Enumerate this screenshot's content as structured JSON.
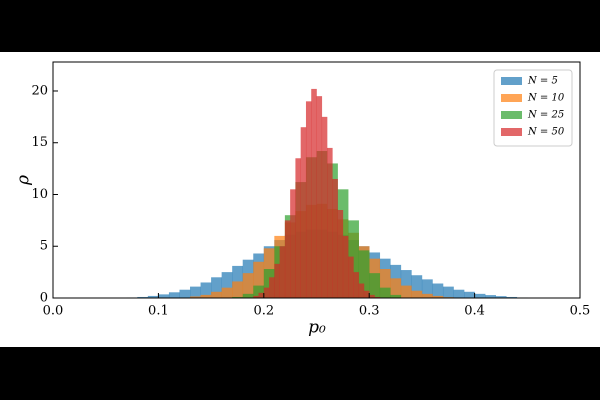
{
  "chart_data": {
    "type": "histogram",
    "xlabel": "p₀",
    "ylabel": "ρ",
    "xlim": [
      0,
      0.5
    ],
    "ylim": [
      0,
      22.8
    ],
    "xticks": [
      {
        "value": 0,
        "label": "0.0"
      },
      0.1,
      0.2,
      0.3,
      0.4,
      0.5
    ],
    "yticks": [
      0,
      5,
      10,
      15,
      20
    ],
    "legend": "upper right",
    "opacity": 0.7,
    "series": [
      {
        "name": "N = 5",
        "color": "#1f77b4",
        "bins": [
          0.06,
          0.07,
          0.08,
          0.09,
          0.1,
          0.11,
          0.12,
          0.13,
          0.14,
          0.15,
          0.16,
          0.17,
          0.18,
          0.19,
          0.2,
          0.21,
          0.22,
          0.23,
          0.24,
          0.25,
          0.26,
          0.27,
          0.28,
          0.29,
          0.3,
          0.31,
          0.32,
          0.33,
          0.34,
          0.35,
          0.36,
          0.37,
          0.38,
          0.39,
          0.4,
          0.41,
          0.42,
          0.43,
          0.44,
          0.45
        ],
        "values": [
          0.02,
          0.05,
          0.1,
          0.2,
          0.35,
          0.55,
          0.8,
          1.1,
          1.5,
          2.0,
          2.5,
          3.1,
          3.7,
          4.3,
          5.0,
          5.6,
          6.1,
          6.4,
          6.6,
          6.6,
          6.4,
          6.1,
          5.6,
          5.0,
          4.4,
          3.8,
          3.2,
          2.7,
          2.2,
          1.8,
          1.4,
          1.1,
          0.8,
          0.6,
          0.4,
          0.28,
          0.18,
          0.1,
          0.05
        ]
      },
      {
        "name": "N = 10",
        "color": "#ff7f0e",
        "bins": [
          0.12,
          0.13,
          0.14,
          0.15,
          0.16,
          0.17,
          0.18,
          0.19,
          0.2,
          0.21,
          0.22,
          0.23,
          0.24,
          0.25,
          0.26,
          0.27,
          0.28,
          0.29,
          0.3,
          0.31,
          0.32,
          0.33,
          0.34,
          0.35,
          0.36,
          0.37,
          0.38
        ],
        "values": [
          0.05,
          0.15,
          0.3,
          0.6,
          1.0,
          1.6,
          2.4,
          3.5,
          4.8,
          6.0,
          7.3,
          8.4,
          9.0,
          9.1,
          8.6,
          7.6,
          6.3,
          5.0,
          3.8,
          2.8,
          1.9,
          1.2,
          0.7,
          0.4,
          0.2,
          0.08
        ]
      },
      {
        "name": "N = 25",
        "color": "#2ca02c",
        "bins": [
          0.17,
          0.18,
          0.19,
          0.2,
          0.21,
          0.22,
          0.23,
          0.24,
          0.25,
          0.26,
          0.27,
          0.28,
          0.29,
          0.3,
          0.31,
          0.32,
          0.33
        ],
        "values": [
          0.1,
          0.4,
          1.2,
          2.8,
          5.0,
          8.0,
          11.2,
          13.6,
          14.2,
          13.0,
          10.5,
          7.5,
          4.6,
          2.4,
          1.0,
          0.3
        ]
      },
      {
        "name": "N = 50",
        "color": "#d62728",
        "bins": [
          0.19,
          0.195,
          0.2,
          0.205,
          0.21,
          0.215,
          0.22,
          0.225,
          0.23,
          0.235,
          0.24,
          0.245,
          0.25,
          0.255,
          0.26,
          0.265,
          0.27,
          0.275,
          0.28,
          0.285,
          0.29,
          0.295,
          0.3,
          0.305,
          0.31
        ],
        "values": [
          0.2,
          0.5,
          1.0,
          2.0,
          3.3,
          5.0,
          7.5,
          10.5,
          13.5,
          16.5,
          19.0,
          20.2,
          19.5,
          17.5,
          14.5,
          11.5,
          8.5,
          6.0,
          4.0,
          2.5,
          1.4,
          0.7,
          0.3,
          0.1
        ]
      }
    ]
  }
}
